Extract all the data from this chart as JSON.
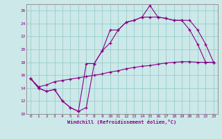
{
  "xlabel": "Windchill (Refroidissement éolien,°C)",
  "background_color": "#cce8e8",
  "grid_color": "#99cccc",
  "line_color": "#880088",
  "xlim": [
    -0.5,
    23.5
  ],
  "ylim": [
    10,
    27
  ],
  "xticks": [
    0,
    1,
    2,
    3,
    4,
    5,
    6,
    7,
    8,
    9,
    10,
    11,
    12,
    13,
    14,
    15,
    16,
    17,
    18,
    19,
    20,
    21,
    22,
    23
  ],
  "yticks": [
    10,
    12,
    14,
    16,
    18,
    20,
    22,
    24,
    26
  ],
  "line1_x": [
    0,
    1,
    2,
    3,
    4,
    5,
    6,
    7,
    8,
    9,
    10,
    11,
    12,
    13,
    14,
    15,
    16,
    17,
    18,
    19,
    20,
    21,
    22,
    23
  ],
  "line1_y": [
    15.5,
    14.0,
    13.5,
    13.8,
    12.0,
    11.0,
    10.4,
    11.0,
    17.8,
    19.8,
    23.0,
    23.0,
    24.2,
    24.5,
    25.0,
    26.8,
    25.0,
    24.8,
    24.5,
    24.5,
    23.0,
    20.8,
    18.0,
    18.0
  ],
  "line2_x": [
    0,
    1,
    2,
    3,
    4,
    5,
    6,
    7,
    8,
    9,
    10,
    11,
    12,
    13,
    14,
    15,
    16,
    17,
    18,
    19,
    20,
    21,
    22,
    23
  ],
  "line2_y": [
    15.5,
    14.0,
    13.5,
    13.8,
    12.0,
    11.0,
    10.4,
    17.8,
    17.8,
    19.8,
    21.0,
    23.0,
    24.2,
    24.5,
    25.0,
    25.0,
    25.0,
    24.8,
    24.5,
    24.5,
    24.5,
    23.0,
    20.8,
    18.0
  ],
  "line3_x": [
    0,
    1,
    2,
    3,
    4,
    5,
    6,
    7,
    8,
    9,
    10,
    11,
    12,
    13,
    14,
    15,
    16,
    17,
    18,
    19,
    20,
    21,
    22,
    23
  ],
  "line3_y": [
    15.5,
    14.2,
    14.5,
    15.0,
    15.2,
    15.4,
    15.6,
    15.8,
    16.0,
    16.2,
    16.5,
    16.7,
    17.0,
    17.2,
    17.4,
    17.5,
    17.7,
    17.9,
    18.0,
    18.1,
    18.1,
    18.0,
    18.0,
    18.0
  ]
}
